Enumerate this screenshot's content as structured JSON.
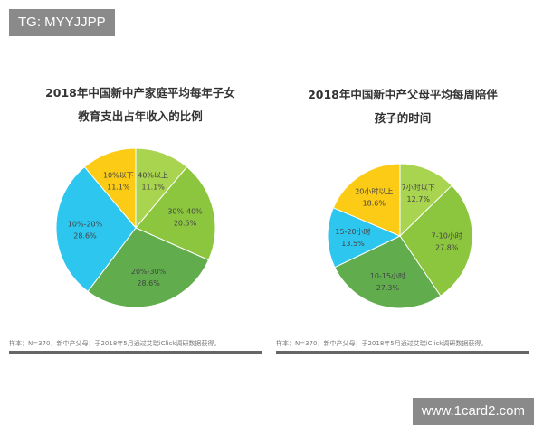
{
  "watermarks": {
    "top": "TG: MYYJJPP",
    "bottom": "www.1card2.com"
  },
  "chart_data": [
    {
      "type": "pie",
      "title_lines": [
        "2018年中国新中产家庭平均每年子女",
        "教育支出占年收入的比例"
      ],
      "slices": [
        {
          "label": "40%以上",
          "value": 11.1,
          "value_label": "11.1%",
          "color": "#a9d44f"
        },
        {
          "label": "30%-40%",
          "value": 20.5,
          "value_label": "20.5%",
          "color": "#8cc63f"
        },
        {
          "label": "20%-30%",
          "value": 28.6,
          "value_label": "28.6%",
          "color": "#61ad4d"
        },
        {
          "label": "10%-20%",
          "value": 28.6,
          "value_label": "28.6%",
          "color": "#2cc6ee"
        },
        {
          "label": "10%以下",
          "value": 11.1,
          "value_label": "11.1%",
          "color": "#fbcb16"
        }
      ],
      "note": "样本：N=370，新中产父母；于2018年5月通过艾瑞iClick调研数据获得。"
    },
    {
      "type": "pie",
      "title_lines": [
        "2018年中国新中产父母平均每周陪伴",
        "孩子的时间"
      ],
      "slices": [
        {
          "label": "7小时以下",
          "value": 12.7,
          "value_label": "12.7%",
          "color": "#a9d44f"
        },
        {
          "label": "7-10小时",
          "value": 27.8,
          "value_label": "27.8%",
          "color": "#8cc63f"
        },
        {
          "label": "10-15小时",
          "value": 27.3,
          "value_label": "27.3%",
          "color": "#61ad4d"
        },
        {
          "label": "15-20小时",
          "value": 13.5,
          "value_label": "13.5%",
          "color": "#2cc6ee"
        },
        {
          "label": "20小时以上",
          "value": 18.6,
          "value_label": "18.6%",
          "color": "#fbcb16"
        }
      ],
      "note": "样本：N=370，新中产父母；于2018年5月通过艾瑞iClick调研数据获得。"
    }
  ]
}
